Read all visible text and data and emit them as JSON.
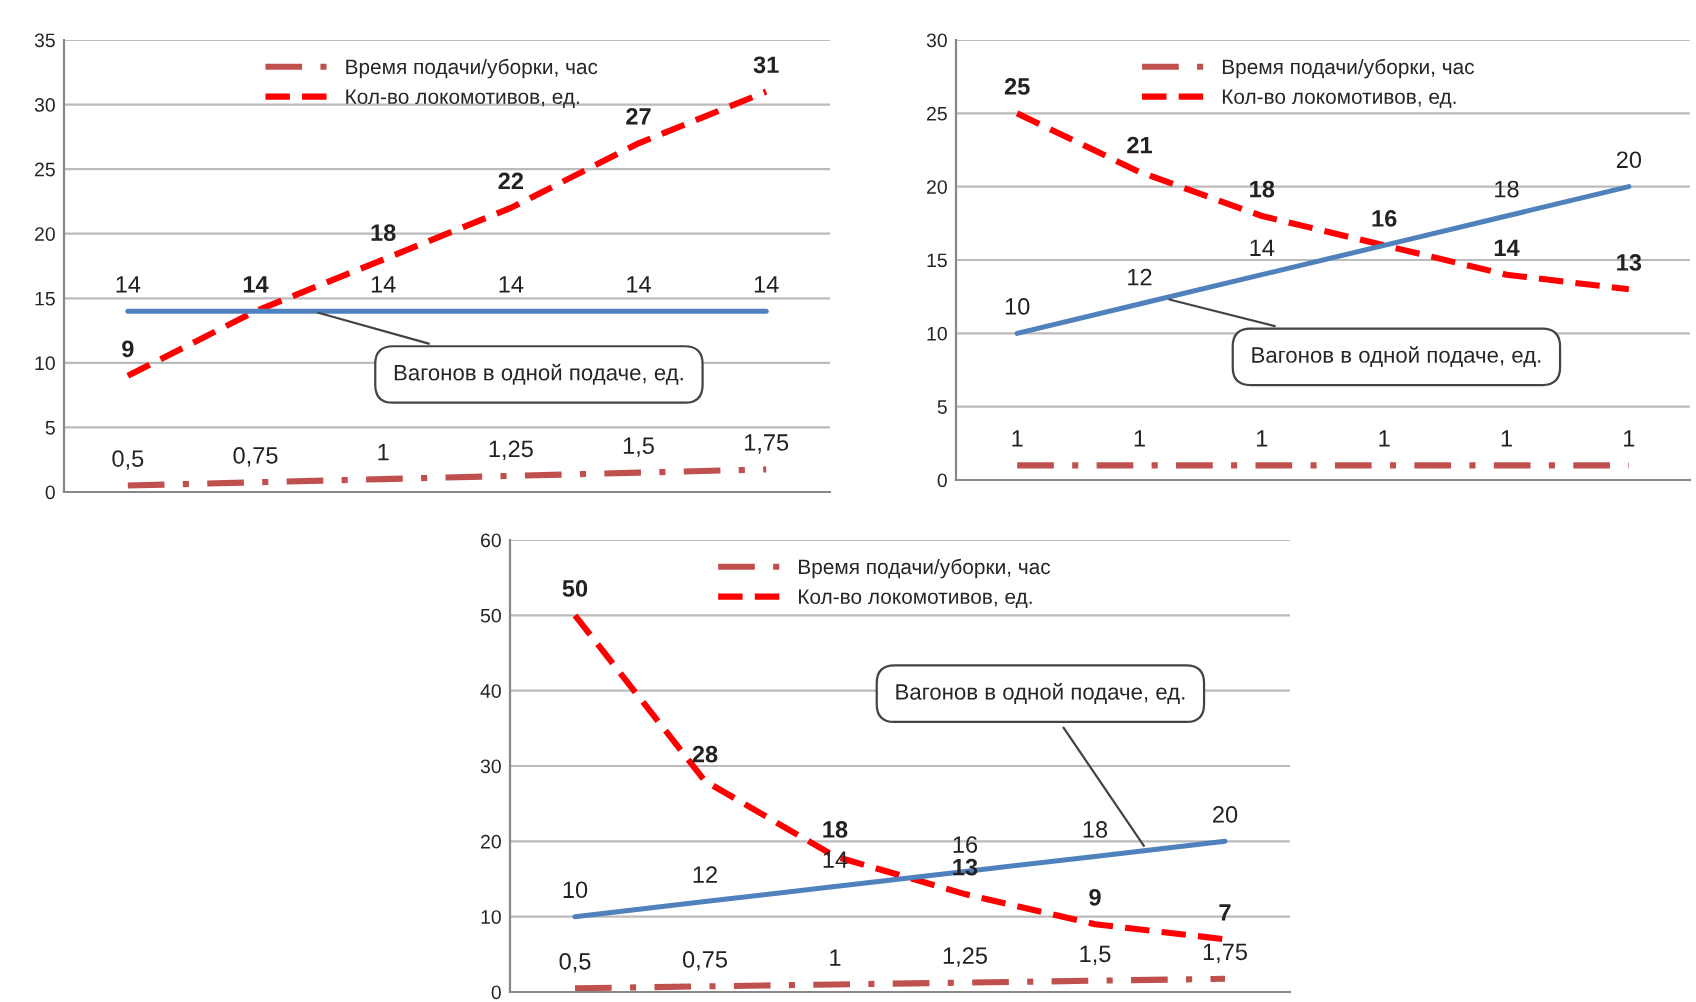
{
  "chart_data": [
    {
      "type": "line",
      "categories": [
        null,
        null,
        null,
        null,
        null,
        null
      ],
      "ylim": [
        0,
        35
      ],
      "yticks": [
        0,
        5,
        10,
        15,
        20,
        25,
        30,
        35
      ],
      "grid": "y",
      "legend": "top",
      "tick_labels": "y",
      "annotations": [
        "Вагонов в одной подаче, ед."
      ],
      "series": [
        {
          "name": "Время подачи/уборки, час",
          "color": "#c0504d",
          "line_style": "dashdot",
          "values": [
            0.5,
            0.75,
            1,
            1.25,
            1.5,
            1.75
          ],
          "value_labels": [
            "0,5",
            "0,75",
            "1",
            "1,25",
            "1,5",
            "1,75"
          ]
        },
        {
          "name": "Кол-во локомотивов, ед.",
          "color": "#ff0000",
          "line_style": "dashed",
          "values": [
            9,
            14,
            18,
            22,
            27,
            31
          ],
          "value_labels": [
            "9",
            "14",
            "18",
            "22",
            "27",
            "31"
          ]
        },
        {
          "color": "#4f81bd",
          "line_style": "solid",
          "values": [
            14,
            14,
            14,
            14,
            14,
            14
          ],
          "value_labels": [
            "14",
            null,
            "14",
            "14",
            "14",
            "14"
          ]
        }
      ]
    },
    {
      "type": "line",
      "categories": [
        null,
        null,
        null,
        null,
        null,
        null
      ],
      "ylim": [
        0,
        30
      ],
      "yticks": [
        0,
        5,
        10,
        15,
        20,
        25,
        30
      ],
      "grid": "y",
      "legend": "top",
      "tick_labels": "y",
      "annotations": [
        "Вагонов в одной подаче, ед."
      ],
      "series": [
        {
          "name": "Время подачи/уборки, час",
          "color": "#c0504d",
          "line_style": "dashdot",
          "values": [
            1,
            1,
            1,
            1,
            1,
            1
          ],
          "value_labels": [
            "1",
            "1",
            "1",
            "1",
            "1",
            "1"
          ]
        },
        {
          "name": "Кол-во локомотивов, ед.",
          "color": "#ff0000",
          "line_style": "dashed",
          "values": [
            25,
            21,
            18,
            16,
            14,
            13
          ],
          "value_labels": [
            "25",
            "21",
            "18",
            "16",
            "14",
            "13"
          ]
        },
        {
          "color": "#4f81bd",
          "line_style": "solid",
          "values": [
            10,
            12,
            14,
            16,
            18,
            20
          ],
          "value_labels": [
            "10",
            "12",
            "14",
            null,
            "18",
            "20"
          ]
        }
      ]
    },
    {
      "type": "line",
      "categories": [
        null,
        null,
        null,
        null,
        null,
        null
      ],
      "ylim": [
        0,
        60
      ],
      "yticks": [
        0,
        10,
        20,
        30,
        40,
        50,
        60
      ],
      "grid": "y",
      "legend": "top",
      "tick_labels": "y",
      "annotations": [
        "Вагонов в одной подаче, ед."
      ],
      "series": [
        {
          "name": "Время подачи/уборки, час",
          "color": "#c0504d",
          "line_style": "dashdot",
          "values": [
            0.5,
            0.75,
            1,
            1.25,
            1.5,
            1.75
          ],
          "value_labels": [
            "0,5",
            "0,75",
            "1",
            "1,25",
            "1,5",
            "1,75"
          ]
        },
        {
          "name": "Кол-во локомотивов, ед.",
          "color": "#ff0000",
          "line_style": "dashed",
          "values": [
            50,
            28,
            18,
            13,
            9,
            7
          ],
          "value_labels": [
            "50",
            "28",
            "18",
            "13",
            "9",
            "7"
          ]
        },
        {
          "color": "#4f81bd",
          "line_style": "solid",
          "values": [
            10,
            12,
            14,
            16,
            18,
            20
          ],
          "value_labels": [
            "10",
            "12",
            "14",
            "16",
            "18",
            "20"
          ]
        }
      ]
    }
  ]
}
